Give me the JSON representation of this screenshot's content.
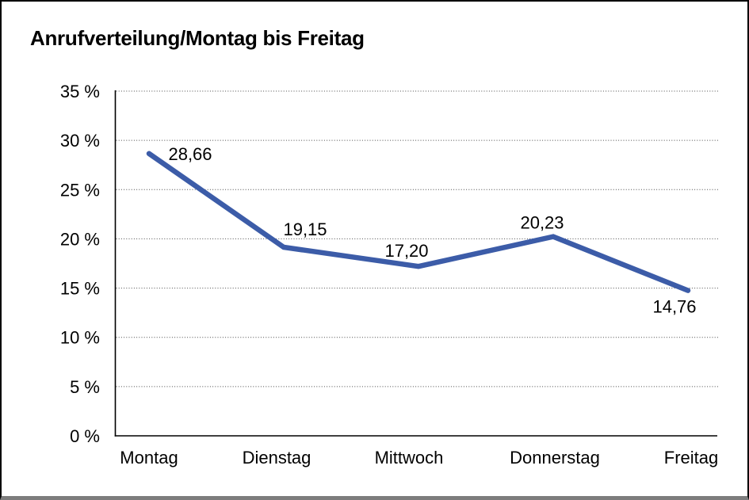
{
  "frame": {
    "background": "#FFFFFF",
    "border_color": "#000000",
    "bottom_edge_color": "#7D7D7D"
  },
  "chart_data": {
    "type": "line",
    "title": "Anrufverteilung/Montag bis Freitag",
    "categories": [
      "Montag",
      "Dienstag",
      "Mittwoch",
      "Donnerstag",
      "Freitag"
    ],
    "values": [
      28.66,
      19.15,
      17.2,
      20.23,
      14.76
    ],
    "value_labels": [
      "28,66",
      "19,15",
      "17,20",
      "20,23",
      "14,76"
    ],
    "xlabel": "",
    "ylabel": "",
    "ylim": [
      0,
      35
    ],
    "ytick_step": 5,
    "ytick_labels": [
      "0 %",
      "5 %",
      "10 %",
      "15 %",
      "20 %",
      "25 %",
      "30 %",
      "35 %"
    ],
    "grid": "horizontal-dotted",
    "legend": "none",
    "line_color": "#3C5CA8",
    "axis_color": "#000000",
    "grid_color": "#4A4A4A",
    "text_color": "#000000"
  }
}
